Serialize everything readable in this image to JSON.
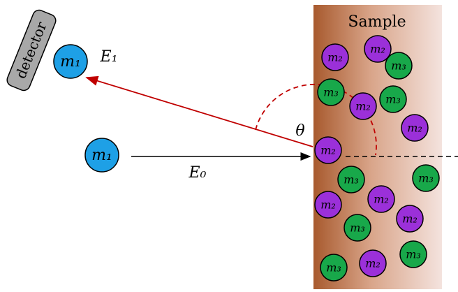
{
  "sample_label": "Sample",
  "detector_label": "detector",
  "incident": {
    "particle": "m₁",
    "energy": "E₀"
  },
  "scattered": {
    "particle": "m₁",
    "energy": "E₁"
  },
  "angle_label": "θ",
  "particles": [
    {
      "label": "m₂"
    },
    {
      "label": "m₂"
    },
    {
      "label": "m₃"
    },
    {
      "label": "m₃"
    },
    {
      "label": "m₂"
    },
    {
      "label": "m₃"
    },
    {
      "label": "m₂"
    },
    {
      "label": "m₂"
    },
    {
      "label": "m₃"
    },
    {
      "label": "m₃"
    },
    {
      "label": "m₂"
    },
    {
      "label": "m₂"
    },
    {
      "label": "m₂"
    },
    {
      "label": "m₃"
    },
    {
      "label": "m₃"
    },
    {
      "label": "m₃"
    },
    {
      "label": "m₂"
    }
  ]
}
